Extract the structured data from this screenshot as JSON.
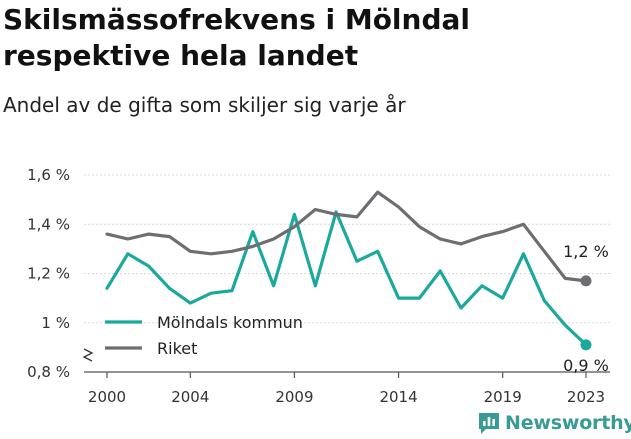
{
  "chart_data": {
    "type": "line",
    "title": "Skilsmässofrekvens i Mölndal respektive hela landet",
    "subtitle": "Andel av de gifta som skiljer sig varje år",
    "x": [
      2000,
      2001,
      2002,
      2003,
      2004,
      2005,
      2006,
      2007,
      2008,
      2009,
      2010,
      2011,
      2012,
      2013,
      2014,
      2015,
      2016,
      2017,
      2018,
      2019,
      2020,
      2021,
      2022,
      2023
    ],
    "x_ticks": [
      "2000",
      "2004",
      "2009",
      "2014",
      "2019",
      "2023"
    ],
    "y_ticks": [
      "0,8 %",
      "1 %",
      "1,2 %",
      "1,4 %",
      "1,6 %"
    ],
    "ylim": [
      0.8,
      1.6
    ],
    "series": [
      {
        "name": "Mölndals kommun",
        "color": "#1aa99c",
        "values": [
          1.14,
          1.28,
          1.23,
          1.14,
          1.08,
          1.12,
          1.13,
          1.37,
          1.15,
          1.44,
          1.15,
          1.45,
          1.25,
          1.29,
          1.1,
          1.1,
          1.21,
          1.06,
          1.15,
          1.1,
          1.28,
          1.09,
          0.99,
          0.91
        ],
        "end_label": "0,9 %"
      },
      {
        "name": "Riket",
        "color": "#6e6e72",
        "values": [
          1.36,
          1.34,
          1.36,
          1.35,
          1.29,
          1.28,
          1.29,
          1.31,
          1.34,
          1.39,
          1.46,
          1.44,
          1.43,
          1.53,
          1.47,
          1.39,
          1.34,
          1.32,
          1.35,
          1.37,
          1.4,
          1.29,
          1.18,
          1.17
        ],
        "end_label": "1,2 %"
      }
    ],
    "legend_position": "bottom-left",
    "grid": true
  },
  "brand": {
    "name": "Newsworthy",
    "color": "#3a9a94"
  }
}
